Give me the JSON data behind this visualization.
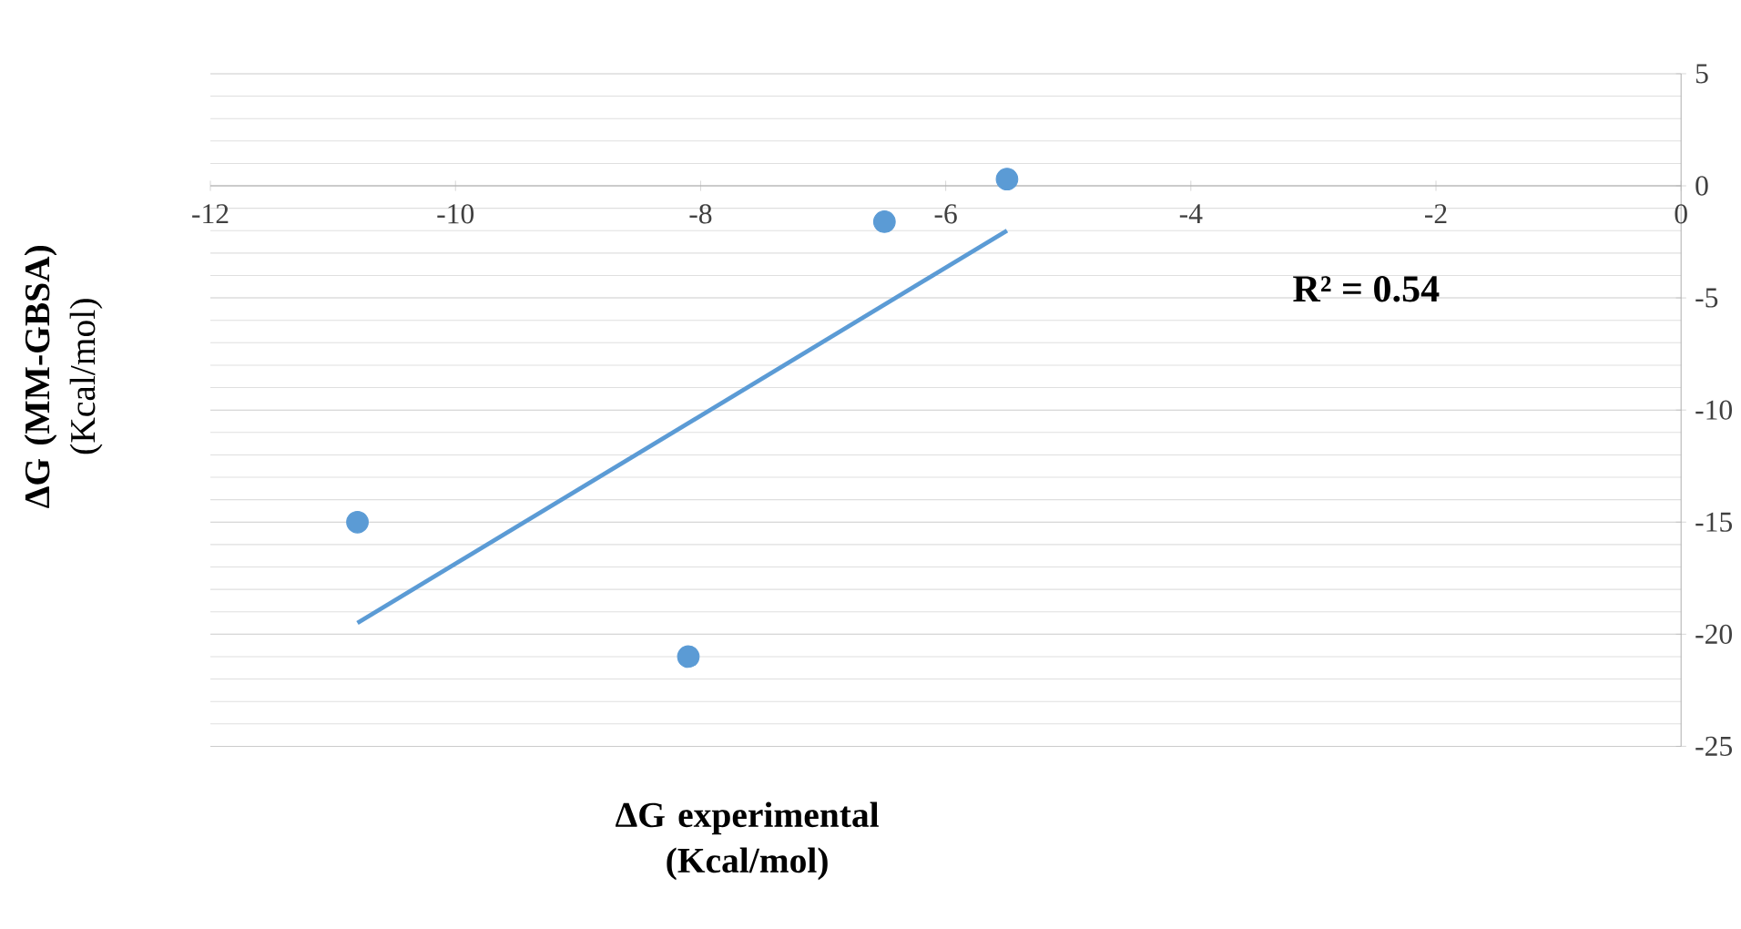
{
  "chart_data": {
    "type": "scatter",
    "xlabel": "ΔG experimental (Kcal/mol)",
    "ylabel": "**ΔG (MM-GBSA)** (Kcal/mol)",
    "annotations": [
      "R² = 0.54"
    ],
    "series": [
      {
        "color": "#5b9bd5",
        "x": [
          -10.8,
          -8.1,
          -6.5,
          -5.5
        ],
        "values": [
          -15.0,
          -21.0,
          -1.6,
          0.3
        ],
        "marker": "circle"
      },
      {
        "type": "line",
        "color": "#5b9bd5",
        "x": [
          -10.8,
          -5.5
        ],
        "values": [
          -19.5,
          -2.0
        ],
        "marker": "none",
        "line_style": "solid"
      }
    ],
    "xlim": [
      -12,
      0
    ],
    "xticks": [
      -12,
      -10,
      -8,
      -6,
      -4,
      -2,
      0
    ],
    "ylim": [
      -25,
      5
    ],
    "yticks": [
      -25,
      -20,
      -15,
      -10,
      -5,
      0,
      5
    ],
    "grid": "y"
  }
}
